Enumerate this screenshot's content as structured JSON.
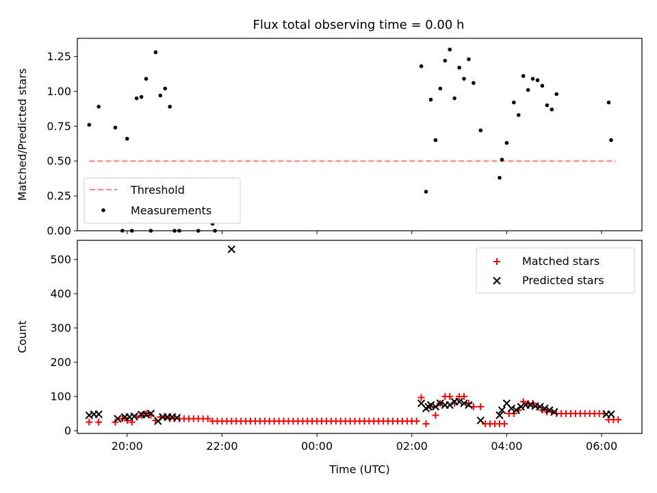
{
  "figure": {
    "title": "Flux total observing time = 0.00 h"
  },
  "chart_data": [
    {
      "type": "scatter",
      "title": "Flux total observing time = 0.00 h",
      "xlabel": "",
      "ylabel": "Matched/Predicted stars",
      "x_unit": "hours relative to 00:00 UTC",
      "xlim": [
        -5.05,
        6.85
      ],
      "ylim": [
        0,
        1.38
      ],
      "yticks": [
        0.0,
        0.25,
        0.5,
        0.75,
        1.0,
        1.25
      ],
      "yticklabels": [
        "0.00",
        "0.25",
        "0.50",
        "0.75",
        "1.00",
        "1.25"
      ],
      "xticks": [
        -4,
        -2,
        0,
        2,
        4,
        6
      ],
      "xticklabels": [
        "20:00",
        "22:00",
        "00:00",
        "02:00",
        "04:00",
        "06:00"
      ],
      "show_xticklabels": false,
      "grid": false,
      "legend_loc": "lower-left",
      "threshold": {
        "name": "Threshold",
        "value": 0.5,
        "x_range": [
          -4.8,
          6.3
        ],
        "color": "#ff7f7f"
      },
      "series": [
        {
          "name": "Measurements",
          "color": "#000000",
          "x": [
            -4.8,
            -4.6,
            -4.25,
            -4.1,
            -4.0,
            -3.9,
            -3.8,
            -3.7,
            -3.6,
            -3.5,
            -3.4,
            -3.3,
            -3.2,
            -3.1,
            -3.0,
            -2.9,
            -2.5,
            -2.2,
            -2.15,
            2.2,
            2.3,
            2.4,
            2.5,
            2.6,
            2.7,
            2.8,
            2.9,
            3.0,
            3.1,
            3.2,
            3.3,
            3.45,
            3.85,
            3.9,
            4.0,
            4.15,
            4.25,
            4.35,
            4.45,
            4.55,
            4.65,
            4.75,
            4.85,
            4.95,
            5.05,
            6.15,
            6.2
          ],
          "y": [
            0.76,
            0.89,
            0.74,
            0.0,
            0.66,
            0.0,
            0.95,
            0.96,
            1.09,
            0.0,
            1.28,
            0.97,
            1.02,
            0.89,
            0.0,
            0.0,
            0.0,
            0.05,
            0.0,
            1.18,
            0.28,
            0.94,
            0.65,
            1.02,
            1.22,
            1.3,
            0.95,
            1.17,
            1.09,
            1.23,
            1.06,
            0.72,
            0.38,
            0.51,
            0.63,
            0.92,
            0.83,
            1.11,
            1.01,
            1.09,
            1.08,
            1.04,
            0.9,
            0.87,
            0.98,
            0.92,
            0.65
          ]
        }
      ]
    },
    {
      "type": "scatter",
      "title": "",
      "xlabel": "Time (UTC)",
      "ylabel": "Count",
      "x_unit": "hours relative to 00:00 UTC",
      "xlim": [
        -5.05,
        6.85
      ],
      "ylim": [
        -8,
        556
      ],
      "yticks": [
        0,
        100,
        200,
        300,
        400,
        500
      ],
      "yticklabels": [
        "0",
        "100",
        "200",
        "300",
        "400",
        "500"
      ],
      "xticks": [
        -4,
        -2,
        0,
        2,
        4,
        6
      ],
      "xticklabels": [
        "20:00",
        "22:00",
        "00:00",
        "02:00",
        "04:00",
        "06:00"
      ],
      "show_xticklabels": true,
      "grid": false,
      "legend_loc": "upper-right",
      "series": [
        {
          "name": "Matched stars",
          "marker": "plus",
          "color": "#ff0000",
          "x": [
            -4.8,
            -4.6,
            -4.25,
            -4.1,
            -4.0,
            -3.9,
            -3.8,
            -3.7,
            -3.6,
            -3.5,
            -3.4,
            -3.3,
            -3.2,
            -3.1,
            -3.0,
            -2.9,
            -2.8,
            -2.7,
            -2.6,
            -2.5,
            -2.4,
            -2.3,
            -2.2,
            -2.1,
            -2.0,
            -1.9,
            -1.8,
            -1.7,
            -1.6,
            -1.5,
            -1.4,
            -1.3,
            -1.2,
            -1.1,
            -1.0,
            -0.9,
            -0.8,
            -0.7,
            -0.6,
            -0.5,
            -0.4,
            -0.3,
            -0.2,
            -0.1,
            0.0,
            0.1,
            0.2,
            0.3,
            0.4,
            0.5,
            0.6,
            0.7,
            0.8,
            0.9,
            1.0,
            1.1,
            1.2,
            1.3,
            1.4,
            1.5,
            1.6,
            1.7,
            1.8,
            1.9,
            2.0,
            2.1,
            2.2,
            2.3,
            2.4,
            2.5,
            2.6,
            2.7,
            2.8,
            2.9,
            3.0,
            3.1,
            3.2,
            3.3,
            3.45,
            3.55,
            3.65,
            3.75,
            3.85,
            3.95,
            4.05,
            4.15,
            4.25,
            4.35,
            4.45,
            4.55,
            4.65,
            4.75,
            4.85,
            4.95,
            5.05,
            5.15,
            5.25,
            5.35,
            5.45,
            5.55,
            5.65,
            5.75,
            5.85,
            5.95,
            6.05,
            6.15,
            6.25,
            6.35
          ],
          "y": [
            25,
            25,
            25,
            35,
            30,
            25,
            40,
            45,
            50,
            45,
            30,
            40,
            40,
            35,
            35,
            35,
            35,
            35,
            35,
            35,
            35,
            35,
            28,
            28,
            28,
            28,
            28,
            28,
            28,
            28,
            28,
            28,
            28,
            28,
            28,
            28,
            28,
            28,
            28,
            28,
            28,
            28,
            28,
            28,
            28,
            28,
            28,
            28,
            28,
            28,
            28,
            28,
            28,
            28,
            28,
            28,
            28,
            28,
            28,
            28,
            28,
            28,
            28,
            28,
            28,
            28,
            97,
            20,
            70,
            45,
            80,
            100,
            100,
            80,
            100,
            100,
            80,
            70,
            70,
            20,
            20,
            20,
            20,
            20,
            50,
            50,
            60,
            85,
            80,
            80,
            70,
            60,
            55,
            55,
            50,
            50,
            50,
            50,
            50,
            50,
            50,
            50,
            50,
            50,
            50,
            32,
            32,
            32
          ]
        },
        {
          "name": "Predicted stars",
          "marker": "x",
          "color": "#000000",
          "x": [
            -4.8,
            -4.7,
            -4.6,
            -4.2,
            -4.05,
            -3.95,
            -3.85,
            -3.7,
            -3.6,
            -3.5,
            -3.35,
            -3.25,
            -3.15,
            -3.05,
            -2.95,
            -1.8,
            2.2,
            2.3,
            2.35,
            2.4,
            2.5,
            2.6,
            2.7,
            2.8,
            2.9,
            3.0,
            3.1,
            3.2,
            3.45,
            3.85,
            3.9,
            4.0,
            4.1,
            4.2,
            4.3,
            4.4,
            4.5,
            4.6,
            4.7,
            4.8,
            4.9,
            5.0,
            6.1,
            6.2
          ],
          "y": [
            45,
            48,
            48,
            35,
            40,
            40,
            42,
            47,
            47,
            50,
            28,
            40,
            40,
            40,
            38,
            530,
            80,
            65,
            70,
            75,
            70,
            80,
            75,
            75,
            85,
            85,
            80,
            75,
            30,
            45,
            60,
            80,
            65,
            60,
            70,
            75,
            75,
            72,
            70,
            65,
            60,
            55,
            48,
            48
          ]
        }
      ]
    }
  ]
}
